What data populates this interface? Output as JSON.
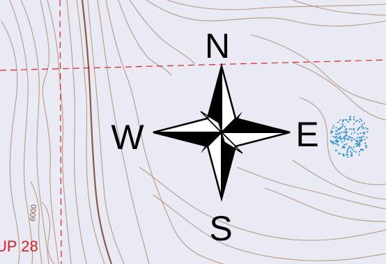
{
  "map": {
    "compass": {
      "north": "N",
      "south": "S",
      "east": "E",
      "west": "W"
    },
    "grid_label": "UP 28",
    "contour_label": "6000",
    "colors": {
      "background": "#e9eaf4",
      "contour": "#b99a82",
      "index_contour": "#8a5a45",
      "grid_line": "#e02020",
      "water": "#2b8fd6",
      "compass": "#000000",
      "grid_label": "#e02020"
    }
  }
}
